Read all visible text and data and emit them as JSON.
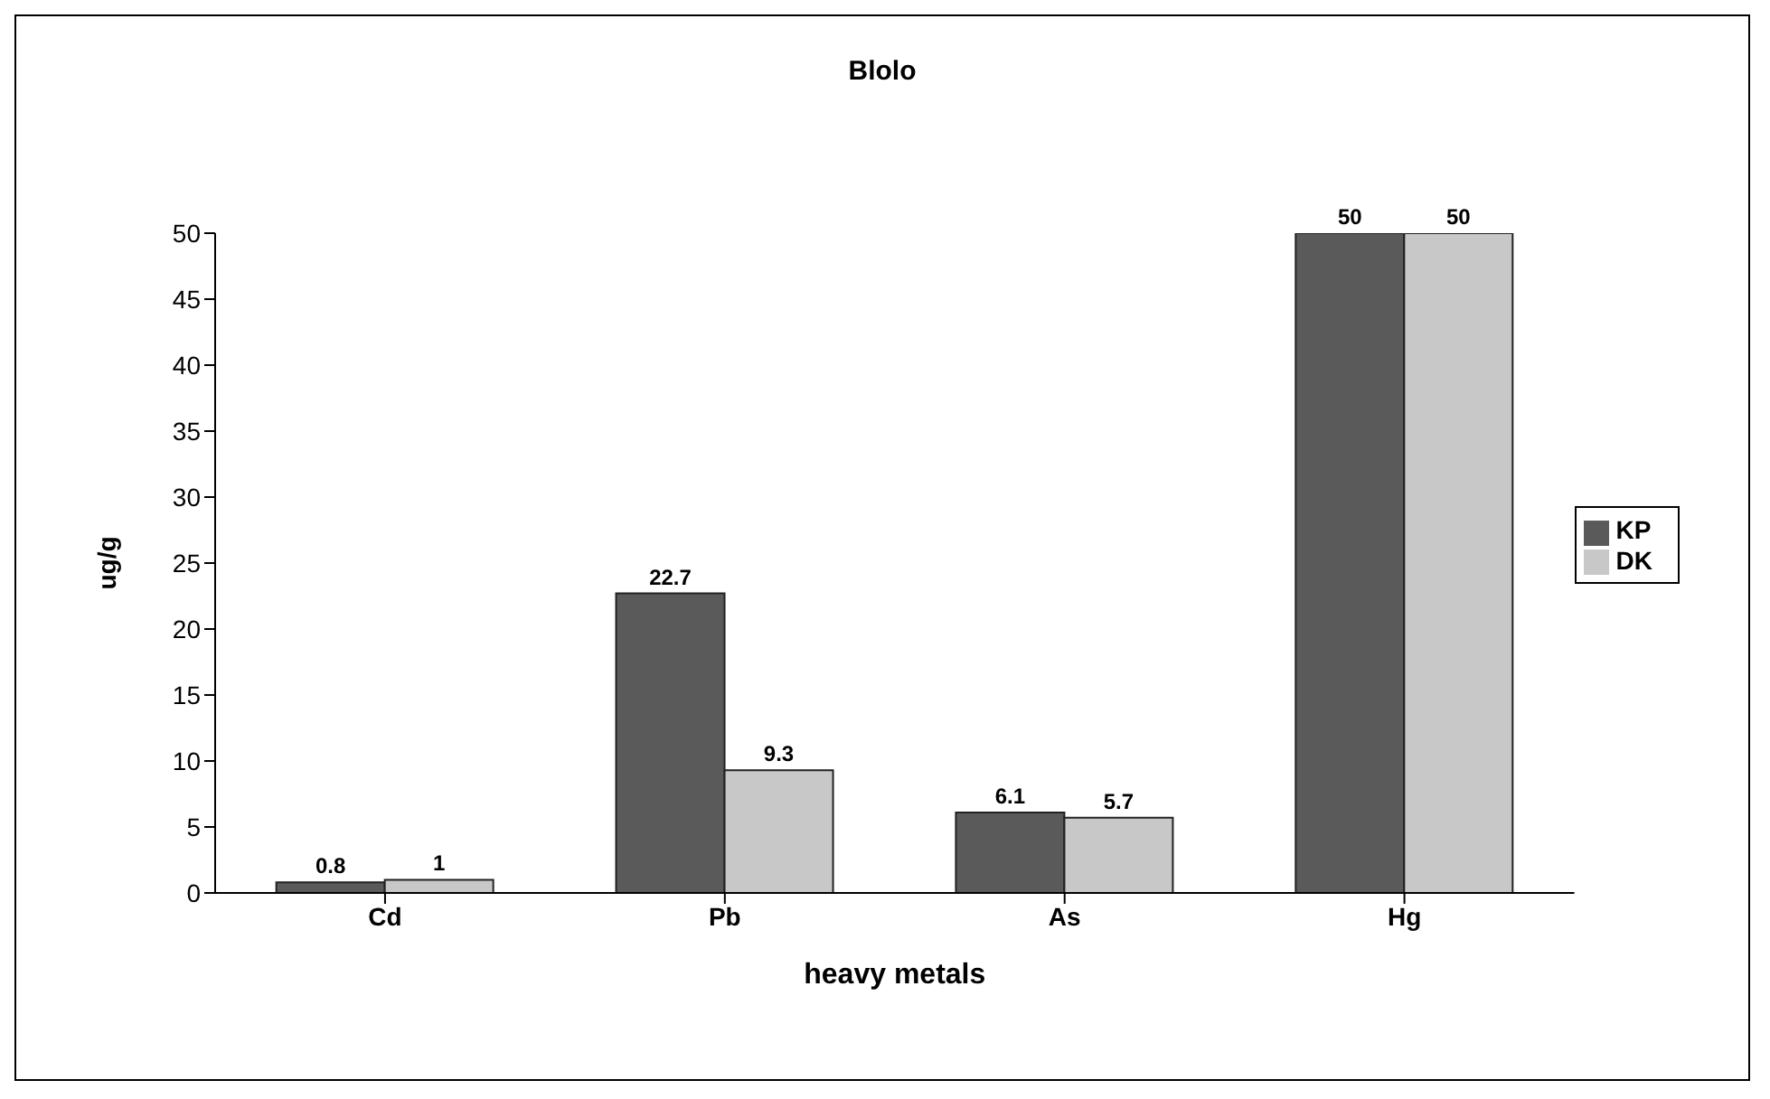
{
  "chart_data": {
    "type": "bar",
    "title": "Blolo",
    "xlabel": "heavy metals",
    "ylabel": "ug/g",
    "categories": [
      "Cd",
      "Pb",
      "As",
      "Hg"
    ],
    "series": [
      {
        "name": "KP",
        "color": "#5a5a5a",
        "values": [
          0.8,
          22.7,
          6.1,
          50
        ]
      },
      {
        "name": "DK",
        "color": "#c8c8c8",
        "values": [
          1,
          9.3,
          5.7,
          50
        ]
      }
    ],
    "ylim": [
      0,
      50
    ],
    "yticks": [
      0,
      5,
      10,
      15,
      20,
      25,
      30,
      35,
      40,
      45,
      50
    ],
    "data_labels": true,
    "legend": "right",
    "grid": false
  }
}
